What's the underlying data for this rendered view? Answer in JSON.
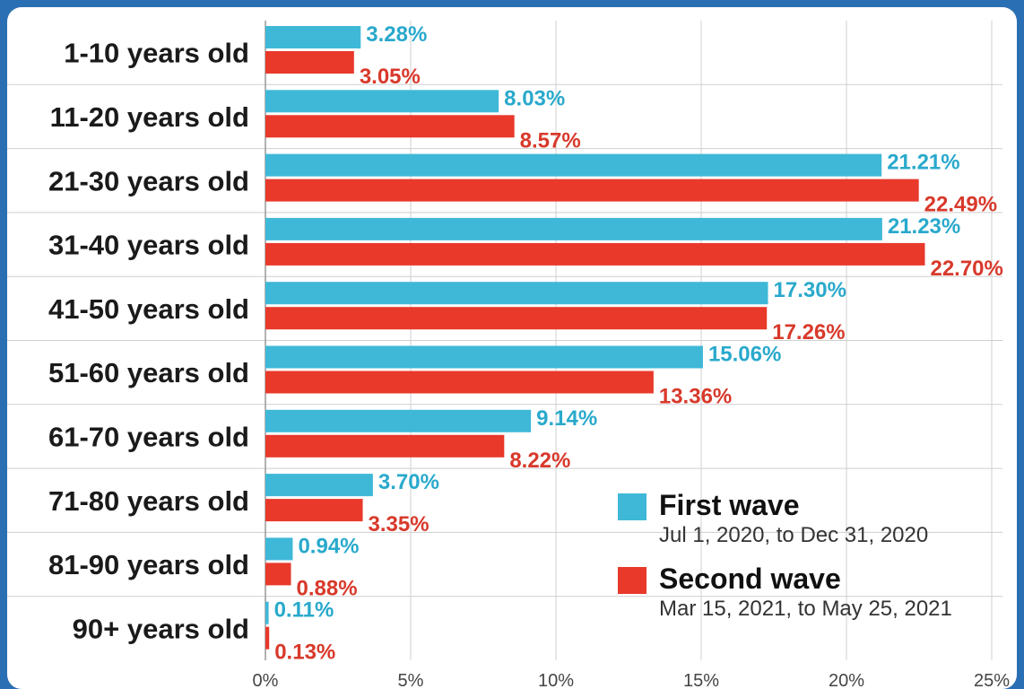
{
  "chart_data": {
    "type": "bar",
    "orientation": "horizontal",
    "categories": [
      "1-10 years old",
      "11-20 years old",
      "21-30 years old",
      "31-40 years old",
      "41-50 years old",
      "51-60 years old",
      "61-70 years old",
      "71-80 years old",
      "81-90 years old",
      "90+ years old"
    ],
    "series": [
      {
        "name": "First wave",
        "color": "#3fb8d8",
        "values": [
          3.28,
          8.03,
          21.21,
          21.23,
          17.3,
          15.06,
          9.14,
          3.7,
          0.94,
          0.11
        ],
        "labels": [
          "3.28%",
          "8.03%",
          "21.21%",
          "21.23%",
          "17.30%",
          "15.06%",
          "9.14%",
          "3.70%",
          "0.94%",
          "0.11%"
        ]
      },
      {
        "name": "Second wave",
        "color": "#e8392b",
        "values": [
          3.05,
          8.57,
          22.49,
          22.7,
          17.26,
          13.36,
          8.22,
          3.35,
          0.88,
          0.13
        ],
        "labels": [
          "3.05%",
          "8.57%",
          "22.49%",
          "22.70%",
          "17.26%",
          "13.36%",
          "8.22%",
          "3.35%",
          "0.88%",
          "0.13%"
        ]
      }
    ],
    "xlim": [
      0,
      25
    ],
    "xticks": [
      "0%",
      "5%",
      "10%",
      "15%",
      "20%",
      "25%"
    ],
    "grid": true,
    "legend_position": "bottom-right"
  },
  "legend": {
    "first": {
      "title": "First wave",
      "subtitle": "Jul 1, 2020, to Dec 31, 2020",
      "color": "#3fb8d8"
    },
    "second": {
      "title": "Second wave",
      "subtitle": "Mar 15, 2021, to May 25, 2021",
      "color": "#e8392b"
    }
  }
}
